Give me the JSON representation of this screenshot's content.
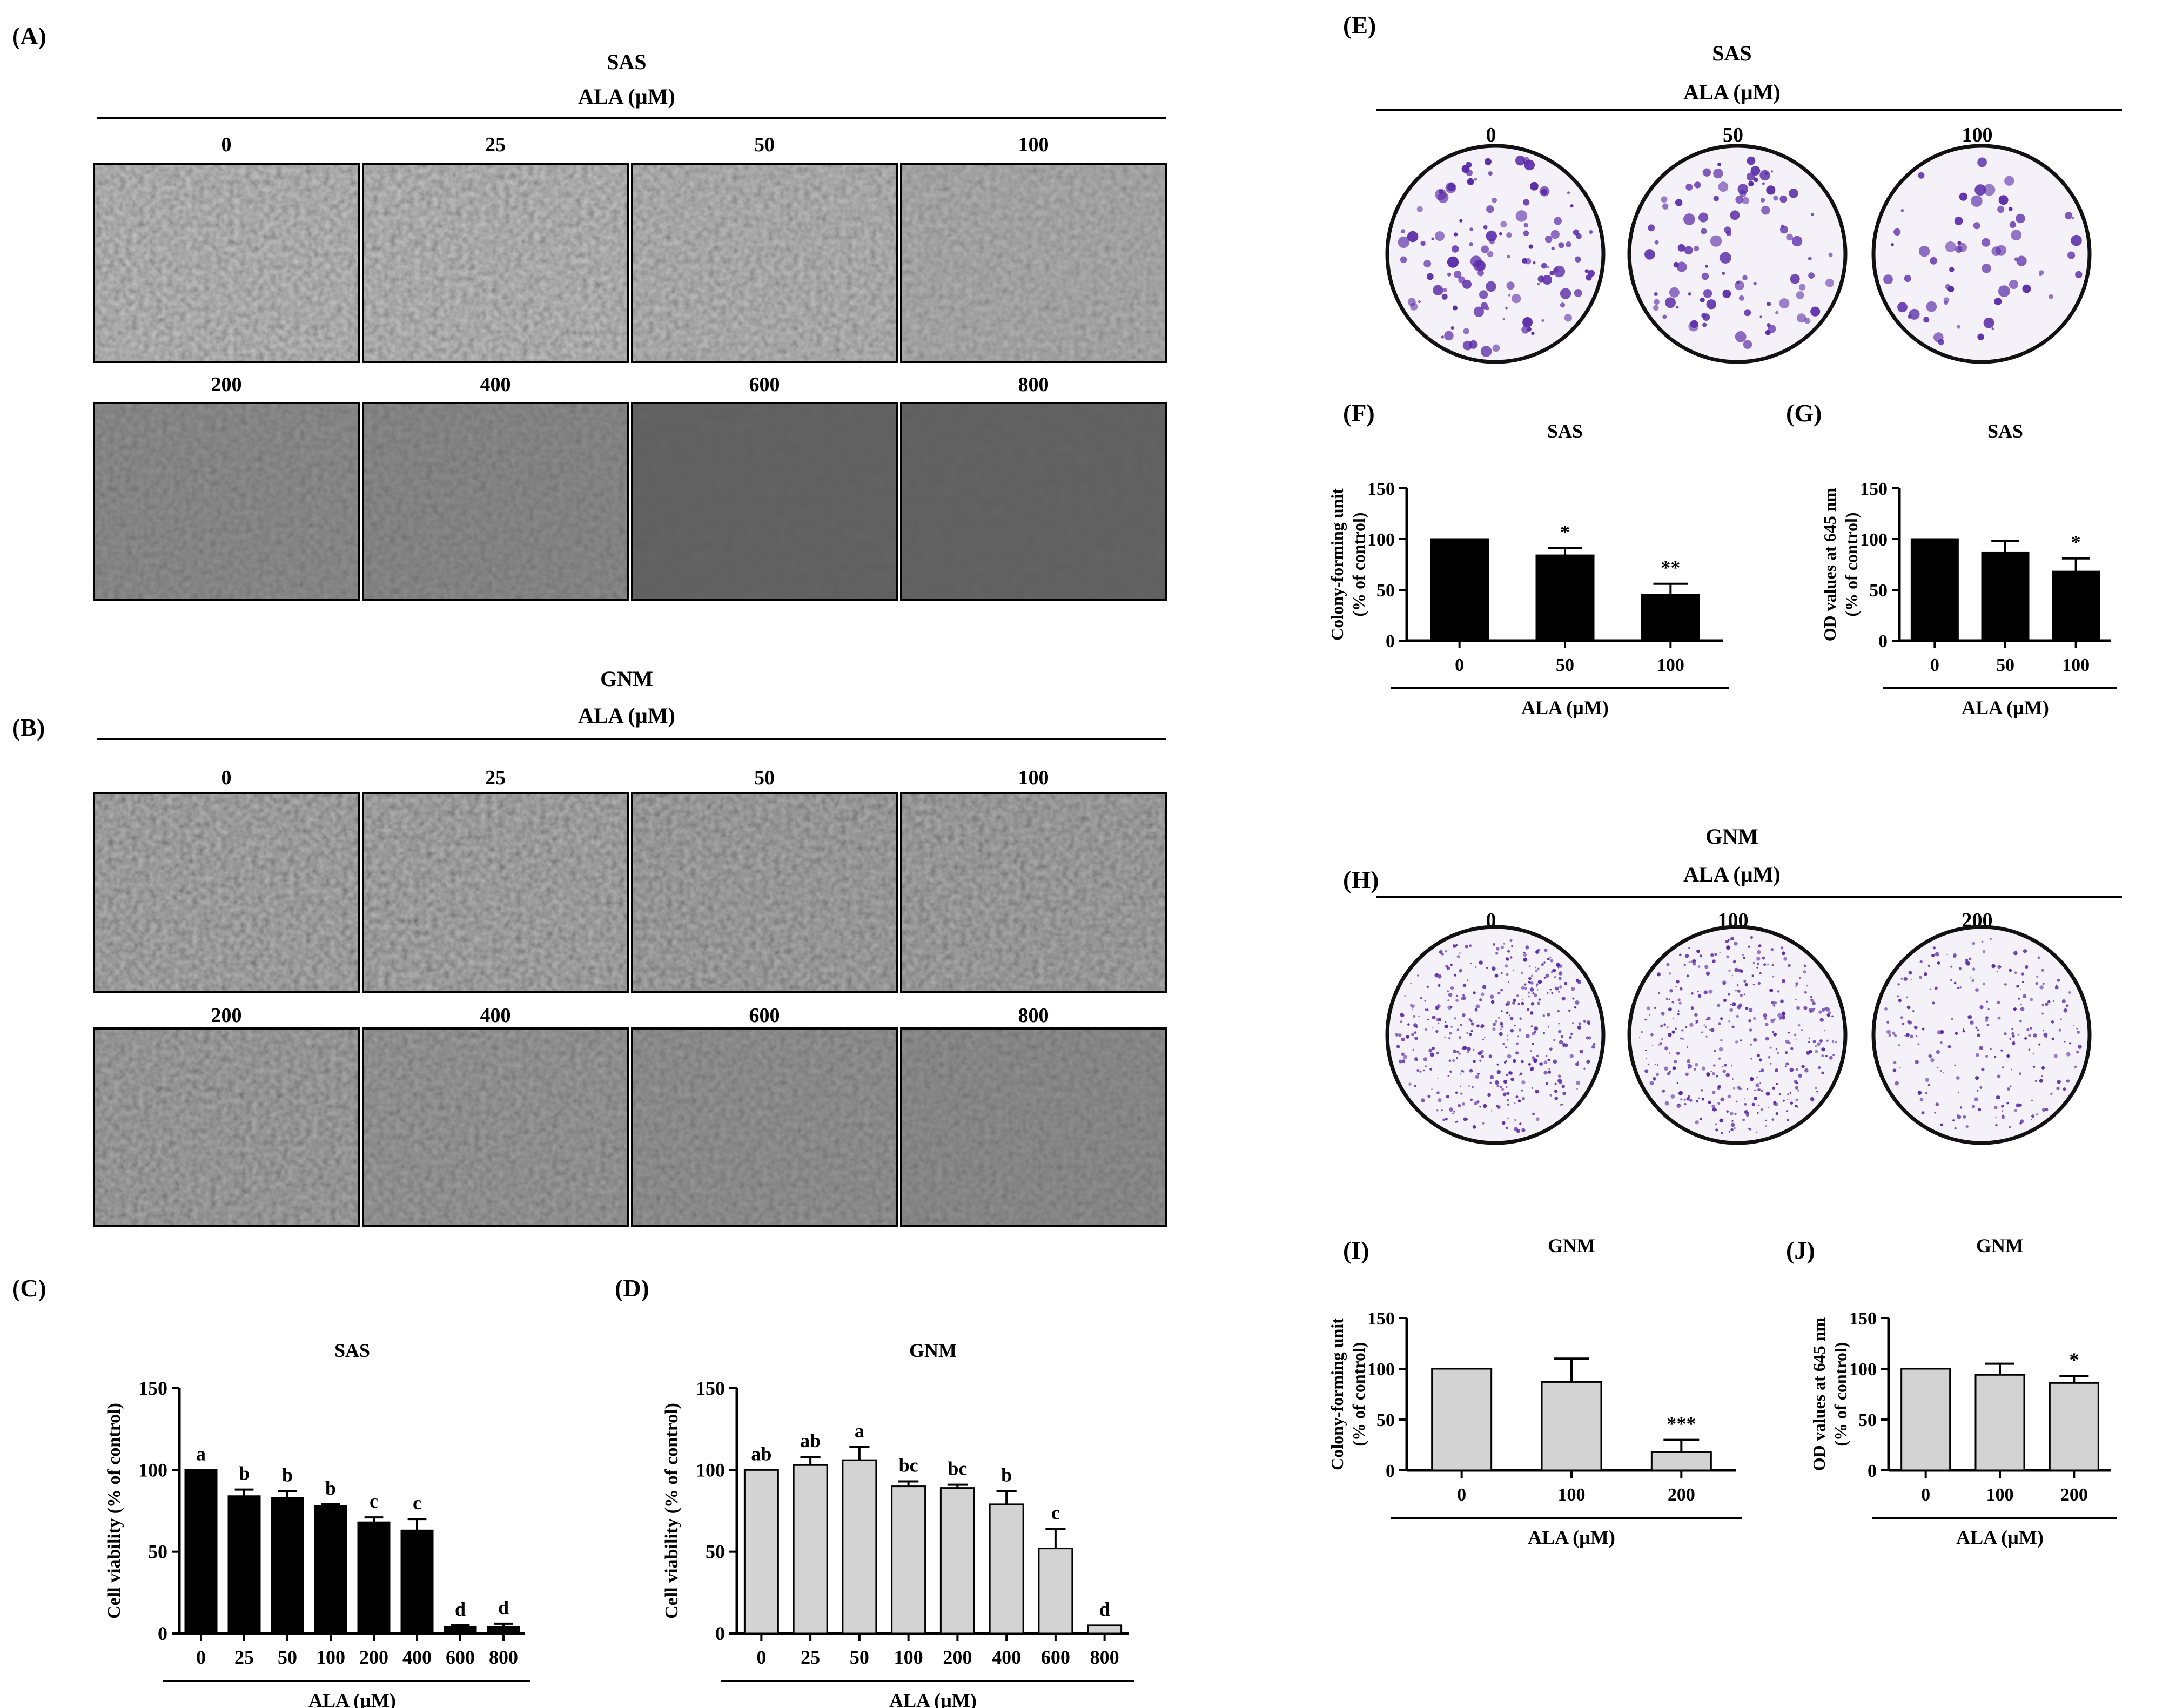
{
  "panels": {
    "A": {
      "label": "(A)",
      "cell": "SAS",
      "agent": "ALA (µM)",
      "doses": [
        "0",
        "25",
        "50",
        "100",
        "200",
        "400",
        "600",
        "800"
      ]
    },
    "B": {
      "label": "(B)",
      "cell": "GNM",
      "agent": "ALA (µM)",
      "doses": [
        "0",
        "25",
        "50",
        "100",
        "200",
        "400",
        "600",
        "800"
      ]
    },
    "E": {
      "label": "(E)",
      "cell": "SAS",
      "agent": "ALA (µM)",
      "doses": [
        "0",
        "50",
        "100"
      ]
    },
    "H": {
      "label": "(H)",
      "cell": "GNM",
      "agent": "ALA (µM)",
      "doses": [
        "0",
        "100",
        "200"
      ]
    }
  },
  "colors": {
    "black_bar": "#000000",
    "gray_bar": "#d3d3d3",
    "micrograph_dark": "#5a5a5a",
    "micrograph_light": "#9a9a9a",
    "stain": "#5a2aa8",
    "dish_bg": "#f4f2f8"
  },
  "chart_data": [
    {
      "id": "C",
      "panel_label": "(C)",
      "type": "bar",
      "title": "SAS",
      "xlabel": "ALA (µM)",
      "ylabel": "Cell viability (% of control)",
      "ylim": [
        0,
        150
      ],
      "yticks": [
        0,
        50,
        100,
        150
      ],
      "categories": [
        "0",
        "25",
        "50",
        "100",
        "200",
        "400",
        "600",
        "800"
      ],
      "values": [
        100,
        84,
        83,
        78,
        68,
        63,
        4,
        4
      ],
      "errors": [
        0,
        4,
        4,
        1,
        3,
        7,
        1,
        2
      ],
      "annotations": [
        "a",
        "b",
        "b",
        "b",
        "c",
        "c",
        "d",
        "d"
      ],
      "bar_color": "black"
    },
    {
      "id": "D",
      "panel_label": "(D)",
      "type": "bar",
      "title": "GNM",
      "xlabel": "ALA (µM)",
      "ylabel": "Cell viability (% of control)",
      "ylim": [
        0,
        150
      ],
      "yticks": [
        0,
        50,
        100,
        150
      ],
      "categories": [
        "0",
        "25",
        "50",
        "100",
        "200",
        "400",
        "600",
        "800"
      ],
      "values": [
        100,
        103,
        106,
        90,
        89,
        79,
        52,
        5
      ],
      "errors": [
        0,
        5,
        8,
        3,
        2,
        8,
        12,
        0
      ],
      "annotations": [
        "ab",
        "ab",
        "a",
        "bc",
        "bc",
        "b",
        "c",
        "d"
      ],
      "bar_color": "gray"
    },
    {
      "id": "F",
      "panel_label": "(F)",
      "type": "bar",
      "title": "SAS",
      "xlabel": "ALA (µM)",
      "ylabel": [
        "Colony-forming unit",
        "(% of control)"
      ],
      "ylim": [
        0,
        150
      ],
      "yticks": [
        0,
        50,
        100,
        150
      ],
      "categories": [
        "0",
        "50",
        "100"
      ],
      "values": [
        100,
        84,
        45
      ],
      "errors": [
        0,
        7,
        11
      ],
      "annotations": [
        "",
        "*",
        "**"
      ],
      "bar_color": "black"
    },
    {
      "id": "G",
      "panel_label": "(G)",
      "type": "bar",
      "title": "SAS",
      "xlabel": "ALA (µM)",
      "ylabel": [
        "OD values at 645 nm",
        "(% of control)"
      ],
      "ylim": [
        0,
        150
      ],
      "yticks": [
        0,
        50,
        100,
        150
      ],
      "categories": [
        "0",
        "50",
        "100"
      ],
      "values": [
        100,
        87,
        68
      ],
      "errors": [
        0,
        11,
        13
      ],
      "annotations": [
        "",
        "",
        "*"
      ],
      "bar_color": "black"
    },
    {
      "id": "I",
      "panel_label": "(I)",
      "type": "bar",
      "title": "GNM",
      "xlabel": "ALA (µM)",
      "ylabel": [
        "Colony-forming unit",
        "(% of control)"
      ],
      "ylim": [
        0,
        150
      ],
      "yticks": [
        0,
        50,
        100,
        150
      ],
      "categories": [
        "0",
        "100",
        "200"
      ],
      "values": [
        100,
        87,
        18
      ],
      "errors": [
        0,
        23,
        12
      ],
      "annotations": [
        "",
        "",
        "***"
      ],
      "bar_color": "gray"
    },
    {
      "id": "J",
      "panel_label": "(J)",
      "type": "bar",
      "title": "GNM",
      "xlabel": "ALA (µM)",
      "ylabel": [
        "OD values at 645 nm",
        "(% of control)"
      ],
      "ylim": [
        0,
        150
      ],
      "yticks": [
        0,
        50,
        100,
        150
      ],
      "categories": [
        "0",
        "100",
        "200"
      ],
      "values": [
        100,
        94,
        86
      ],
      "errors": [
        0,
        11,
        7
      ],
      "annotations": [
        "",
        "",
        "*"
      ],
      "bar_color": "gray"
    }
  ]
}
